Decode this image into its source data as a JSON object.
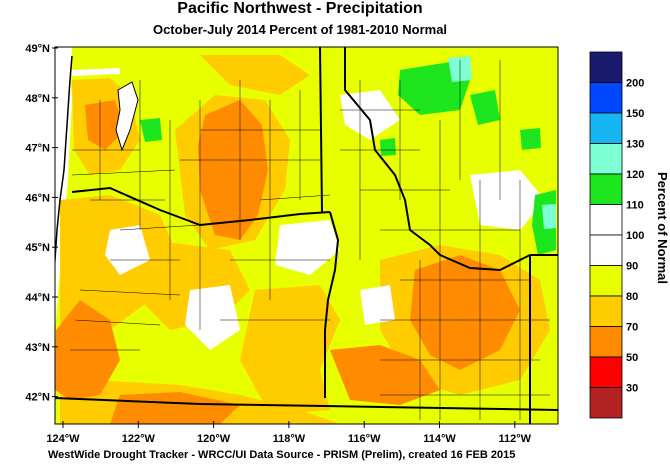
{
  "title": "Pacific Northwest - Precipitation",
  "subtitle": "October-July 2014  Percent of 1981-2010 Normal",
  "latitude_labels": [
    "49°N",
    "48°N",
    "47°N",
    "46°N",
    "45°N",
    "44°N",
    "43°N",
    "42°N"
  ],
  "longitude_labels": [
    "124°W",
    "122°W",
    "120°W",
    "118°W",
    "116°W",
    "114°W",
    "112°W"
  ],
  "legend": {
    "title": "Percent of Normal",
    "bins": [
      {
        "label": "200",
        "color": "#1a1a6e"
      },
      {
        "label": "150",
        "color": "#0047ff"
      },
      {
        "label": "130",
        "color": "#16b6f2"
      },
      {
        "label": "120",
        "color": "#7fffd4"
      },
      {
        "label": "110",
        "color": "#1ee61e"
      },
      {
        "label": "100",
        "color": "#ffffff"
      },
      {
        "label": "90",
        "color": "#ffffff"
      },
      {
        "label": "80",
        "color": "#e8ff00"
      },
      {
        "label": "70",
        "color": "#ffcc00"
      },
      {
        "label": "50",
        "color": "#ff8c00"
      },
      {
        "label": "30",
        "color": "#ff0000"
      },
      {
        "label": "",
        "color": "#b22222"
      }
    ]
  },
  "credit": "WestWide Drought Tracker - WRCC/UI  Data Source - PRISM (Prelim), created 16 FEB 2015"
}
